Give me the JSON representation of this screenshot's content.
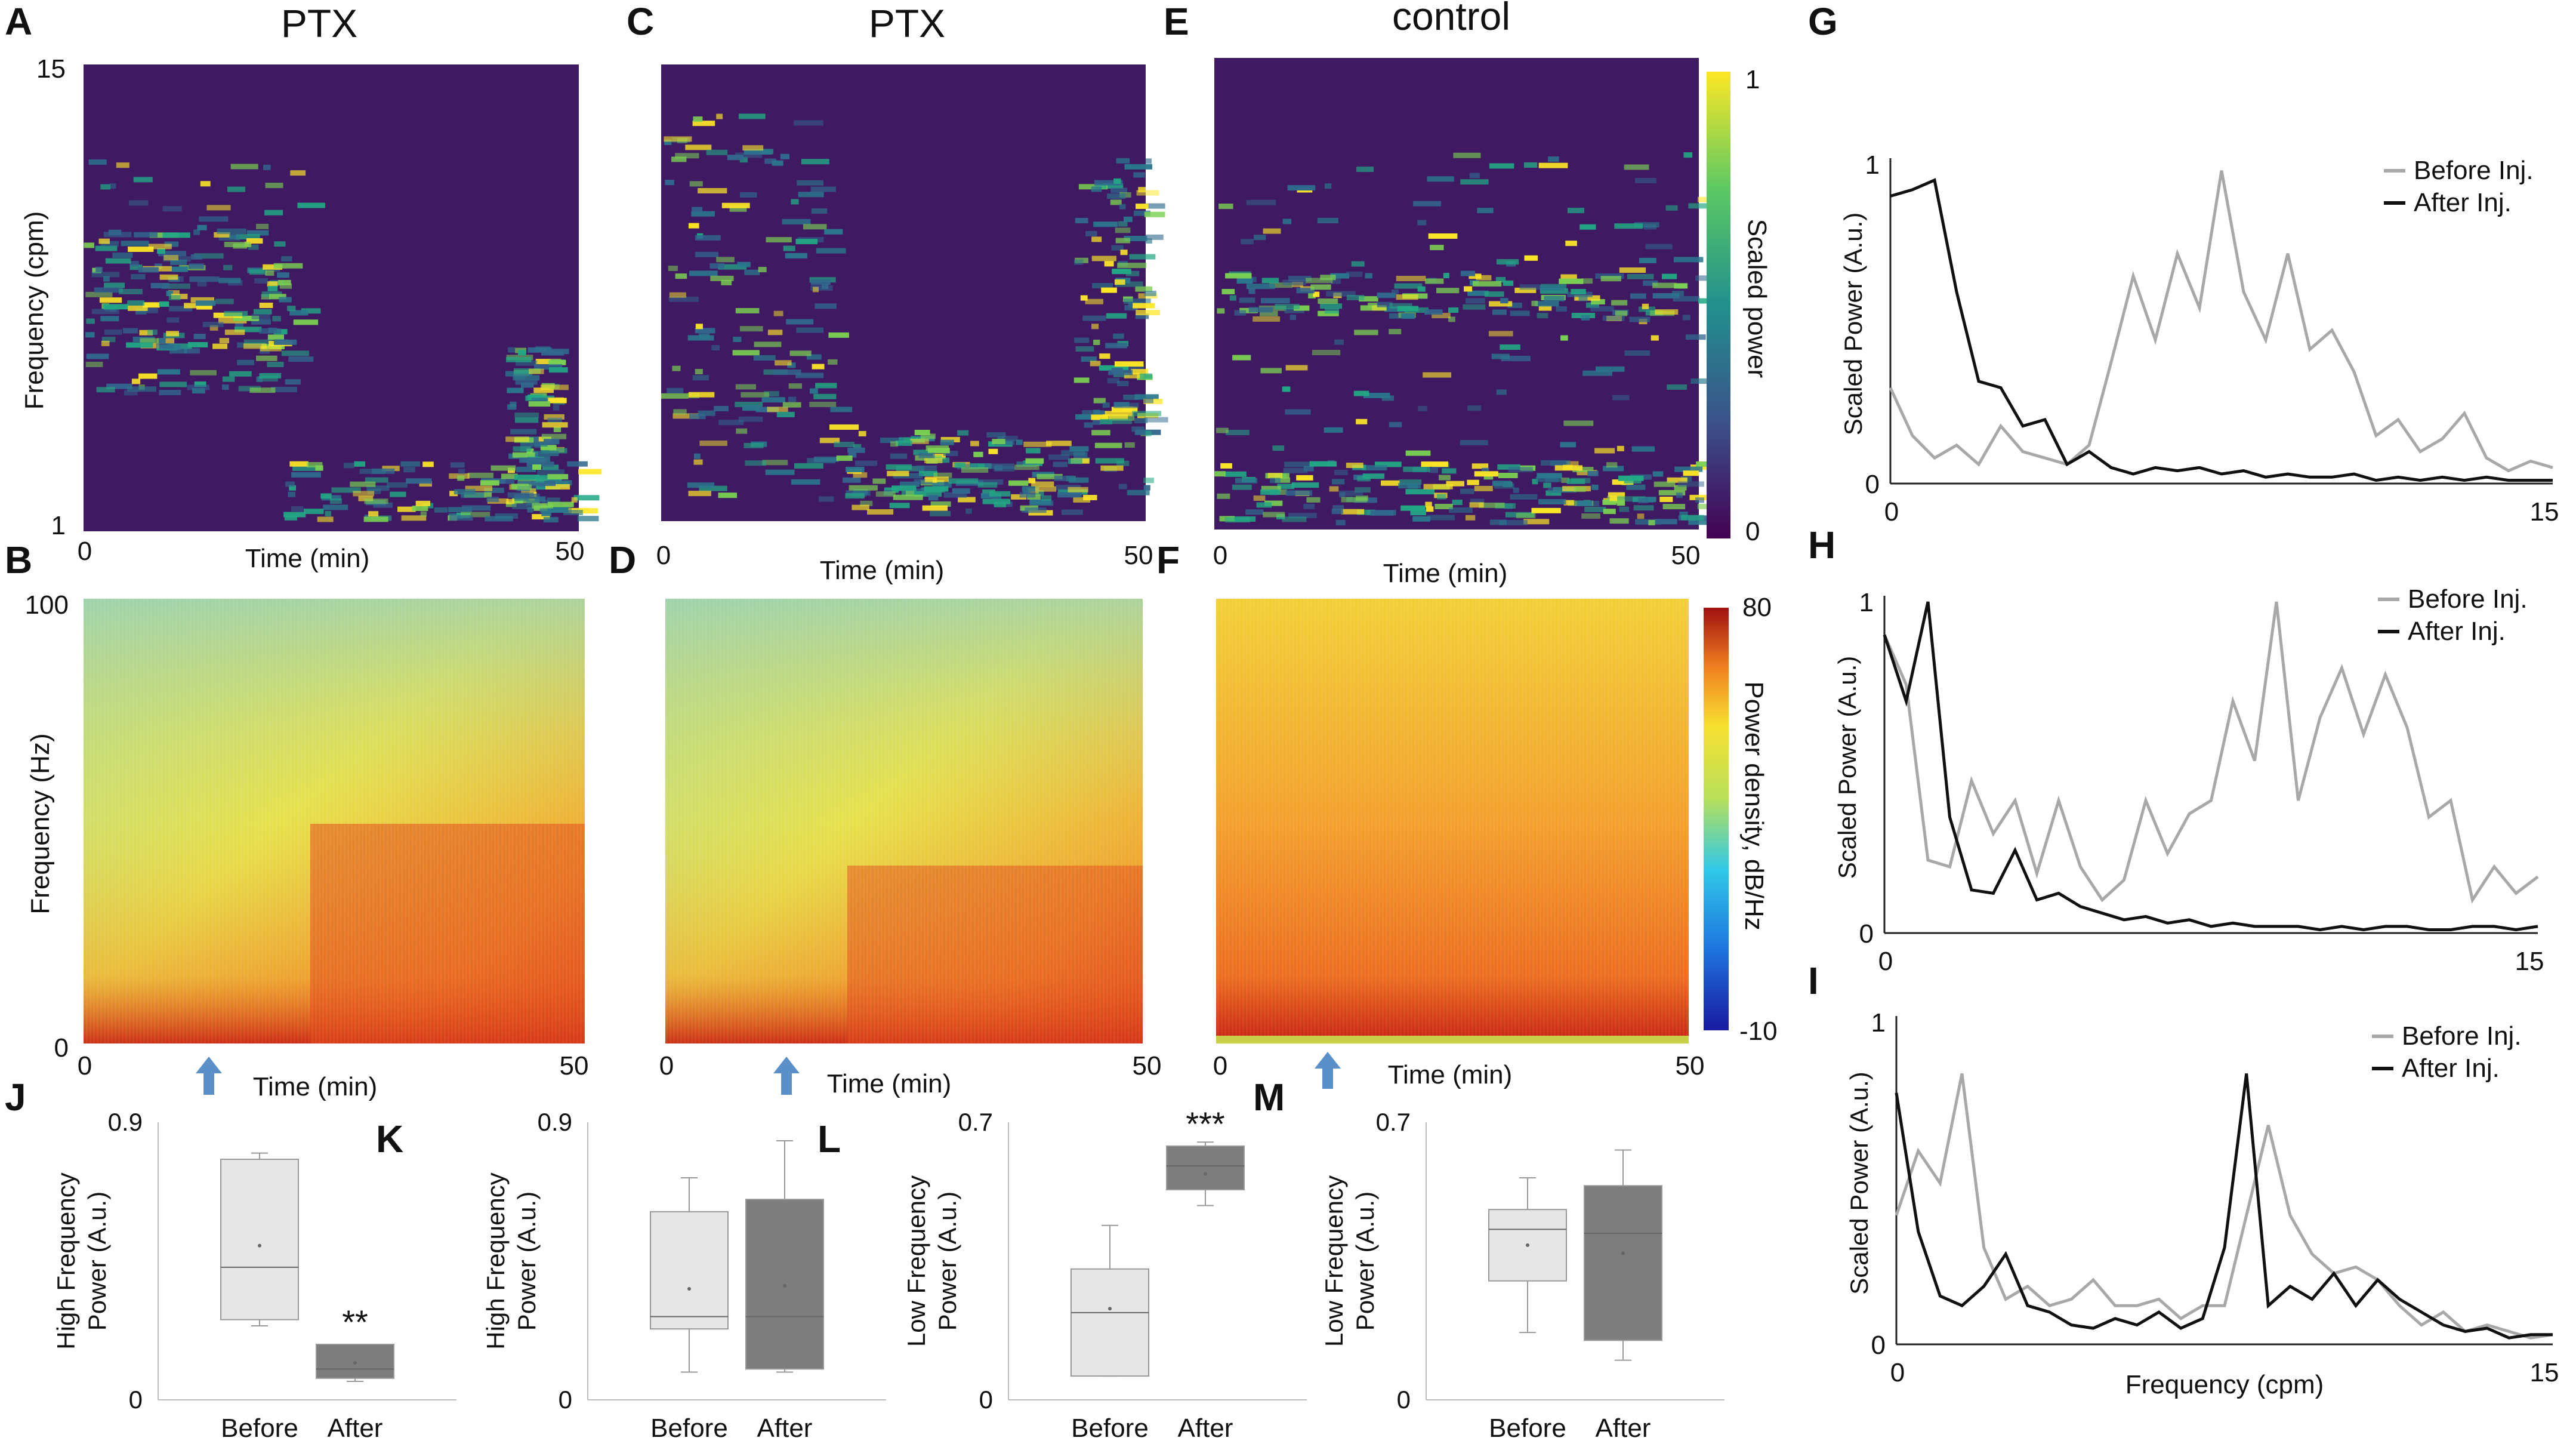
{
  "panel_letters": {
    "A": "A",
    "B": "B",
    "C": "C",
    "D": "D",
    "E": "E",
    "F": "F",
    "G": "G",
    "H": "H",
    "I": "I",
    "J": "J",
    "K": "K",
    "L": "L",
    "M": "M"
  },
  "titles": {
    "ptx_a": "PTX",
    "ptx_c": "PTX",
    "control": "control"
  },
  "labels": {
    "freq_cpm": "Frequency (cpm)",
    "freq_hz": "Frequency (Hz)",
    "time_min": "Time (min)",
    "scaled_power": "Scaled power",
    "power_density": "Power density, dB/Hz",
    "scaled_power_au": "Scaled Power (A.u.)",
    "frequency_cpm": "Frequency (cpm)",
    "hf_power_1": "High Frequency",
    "lf_power_1": "Low  Frequency",
    "power_au": "Power (A.u.)",
    "before": "Before",
    "after": "After"
  },
  "ticks": {
    "t0": "0",
    "t50": "50",
    "f1": "1",
    "f15": "15",
    "h0": "0",
    "h100": "100",
    "cb1": "1",
    "cb0": "0",
    "cb80": "80",
    "cbm10": "-10",
    "g1": "1",
    "g0": "0",
    "g15": "15",
    "j09": "0.9",
    "j0": "0",
    "l07": "0.7",
    "l0": "0"
  },
  "legend": {
    "before": "Before Inj.",
    "after": "After Inj."
  },
  "significance": {
    "J": "**",
    "L": "***"
  },
  "colors": {
    "before_line": "#a8a8a8",
    "after_line": "#111111",
    "box_before": "#e6e6e6",
    "box_after": "#7d7d7d",
    "arrow": "#5b8fc7"
  },
  "chart_data": [
    {
      "id": "G",
      "type": "line",
      "xlabel": "",
      "ylabel": "Scaled Power (A.u.)",
      "xlim": [
        0,
        15
      ],
      "ylim": [
        0,
        1
      ],
      "x": [
        0,
        0.5,
        1,
        1.5,
        2,
        2.5,
        3,
        3.5,
        4,
        4.5,
        5,
        5.5,
        6,
        6.5,
        7,
        7.5,
        8,
        8.5,
        9,
        9.5,
        10,
        10.5,
        11,
        11.5,
        12,
        12.5,
        13,
        13.5,
        14,
        14.5,
        15
      ],
      "series": [
        {
          "name": "Before Inj.",
          "values": [
            0.3,
            0.15,
            0.08,
            0.12,
            0.06,
            0.18,
            0.1,
            0.08,
            0.06,
            0.12,
            0.38,
            0.65,
            0.45,
            0.72,
            0.55,
            0.98,
            0.6,
            0.45,
            0.72,
            0.42,
            0.48,
            0.35,
            0.15,
            0.2,
            0.1,
            0.14,
            0.22,
            0.08,
            0.04,
            0.07,
            0.05
          ]
        },
        {
          "name": "After Inj.",
          "values": [
            0.9,
            0.92,
            0.95,
            0.6,
            0.32,
            0.3,
            0.18,
            0.2,
            0.06,
            0.1,
            0.05,
            0.03,
            0.05,
            0.04,
            0.05,
            0.03,
            0.04,
            0.02,
            0.03,
            0.02,
            0.02,
            0.03,
            0.01,
            0.02,
            0.01,
            0.02,
            0.01,
            0.02,
            0.01,
            0.01,
            0.01
          ]
        }
      ]
    },
    {
      "id": "H",
      "type": "line",
      "xlabel": "",
      "ylabel": "Scaled Power (A.u.)",
      "xlim": [
        0,
        15
      ],
      "ylim": [
        0,
        1
      ],
      "x": [
        0,
        0.5,
        1,
        1.5,
        2,
        2.5,
        3,
        3.5,
        4,
        4.5,
        5,
        5.5,
        6,
        6.5,
        7,
        7.5,
        8,
        8.5,
        9,
        9.5,
        10,
        10.5,
        11,
        11.5,
        12,
        12.5,
        13,
        13.5,
        14,
        14.5,
        15
      ],
      "series": [
        {
          "name": "Before Inj.",
          "values": [
            0.9,
            0.75,
            0.22,
            0.2,
            0.46,
            0.3,
            0.4,
            0.18,
            0.4,
            0.2,
            0.1,
            0.16,
            0.4,
            0.24,
            0.36,
            0.4,
            0.7,
            0.52,
            1.0,
            0.4,
            0.65,
            0.8,
            0.6,
            0.78,
            0.62,
            0.35,
            0.4,
            0.1,
            0.2,
            0.12,
            0.17
          ]
        },
        {
          "name": "After Inj.",
          "values": [
            0.9,
            0.7,
            1.0,
            0.35,
            0.13,
            0.12,
            0.25,
            0.1,
            0.12,
            0.08,
            0.06,
            0.04,
            0.05,
            0.03,
            0.04,
            0.02,
            0.03,
            0.02,
            0.02,
            0.02,
            0.01,
            0.02,
            0.01,
            0.02,
            0.02,
            0.01,
            0.01,
            0.02,
            0.02,
            0.01,
            0.02
          ]
        }
      ]
    },
    {
      "id": "I",
      "type": "line",
      "xlabel": "Frequency (cpm)",
      "ylabel": "Scaled Power (A.u.)",
      "xlim": [
        0,
        15
      ],
      "ylim": [
        0,
        1
      ],
      "x": [
        0,
        0.5,
        1,
        1.5,
        2,
        2.5,
        3,
        3.5,
        4,
        4.5,
        5,
        5.5,
        6,
        6.5,
        7,
        7.5,
        8,
        8.5,
        9,
        9.5,
        10,
        10.5,
        11,
        11.5,
        12,
        12.5,
        13,
        13.5,
        14,
        14.5,
        15
      ],
      "series": [
        {
          "name": "Before Inj.",
          "values": [
            0.4,
            0.6,
            0.5,
            0.84,
            0.3,
            0.14,
            0.18,
            0.12,
            0.14,
            0.2,
            0.12,
            0.12,
            0.14,
            0.08,
            0.12,
            0.12,
            0.4,
            0.68,
            0.4,
            0.28,
            0.22,
            0.24,
            0.2,
            0.12,
            0.06,
            0.1,
            0.04,
            0.06,
            0.04,
            0.02,
            0.03
          ]
        },
        {
          "name": "After Inj.",
          "values": [
            0.78,
            0.35,
            0.15,
            0.12,
            0.18,
            0.28,
            0.12,
            0.1,
            0.06,
            0.05,
            0.08,
            0.06,
            0.1,
            0.05,
            0.08,
            0.3,
            0.84,
            0.12,
            0.18,
            0.14,
            0.22,
            0.12,
            0.2,
            0.14,
            0.1,
            0.06,
            0.04,
            0.05,
            0.02,
            0.03,
            0.03
          ]
        }
      ]
    },
    {
      "id": "J",
      "type": "box",
      "title": "",
      "ylabel": "High Frequency Power (A.u.)",
      "ylim": [
        0,
        0.9
      ],
      "categories": [
        "Before",
        "After"
      ],
      "boxes": [
        {
          "q1": 0.26,
          "median": 0.43,
          "q3": 0.78,
          "min": 0.24,
          "max": 0.8,
          "mean": 0.5
        },
        {
          "q1": 0.07,
          "median": 0.1,
          "q3": 0.18,
          "min": 0.06,
          "max": 0.18,
          "mean": 0.12
        }
      ]
    },
    {
      "id": "K",
      "type": "box",
      "title": "",
      "ylabel": "High Frequency Power (A.u.)",
      "ylim": [
        0,
        0.9
      ],
      "categories": [
        "Before",
        "After"
      ],
      "boxes": [
        {
          "q1": 0.23,
          "median": 0.27,
          "q3": 0.61,
          "min": 0.09,
          "max": 0.72,
          "mean": 0.36
        },
        {
          "q1": 0.1,
          "median": 0.27,
          "q3": 0.65,
          "min": 0.09,
          "max": 0.84,
          "mean": 0.37
        }
      ]
    },
    {
      "id": "L",
      "type": "box",
      "title": "",
      "ylabel": "Low Frequency Power (A.u.)",
      "ylim": [
        0,
        0.7
      ],
      "categories": [
        "Before",
        "After"
      ],
      "boxes": [
        {
          "q1": 0.06,
          "median": 0.22,
          "q3": 0.33,
          "min": 0.06,
          "max": 0.44,
          "mean": 0.23
        },
        {
          "q1": 0.53,
          "median": 0.59,
          "q3": 0.64,
          "min": 0.49,
          "max": 0.65,
          "mean": 0.57
        }
      ]
    },
    {
      "id": "M",
      "type": "box",
      "title": "",
      "ylabel": "Low Frequency Power (A.u.)",
      "ylim": [
        0,
        0.7
      ],
      "categories": [
        "Before",
        "After"
      ],
      "boxes": [
        {
          "q1": 0.3,
          "median": 0.43,
          "q3": 0.48,
          "min": 0.17,
          "max": 0.56,
          "mean": 0.39
        },
        {
          "q1": 0.15,
          "median": 0.42,
          "q3": 0.54,
          "min": 0.1,
          "max": 0.63,
          "mean": 0.37
        }
      ]
    }
  ]
}
